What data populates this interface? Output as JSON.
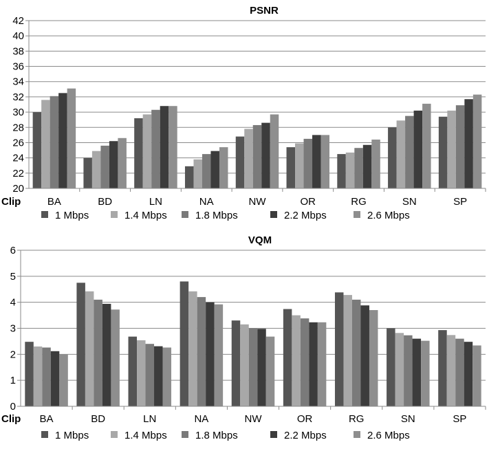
{
  "chart_data": [
    {
      "type": "bar",
      "title": "PSNR",
      "x_prefix_label": "Clip",
      "categories": [
        "BA",
        "BD",
        "LN",
        "NA",
        "NW",
        "OR",
        "RG",
        "SN",
        "SP"
      ],
      "ylim": [
        20,
        42
      ],
      "ytick_step": 2,
      "grid": true,
      "legend_position": "bottom",
      "series": [
        {
          "name": "1 Mbps",
          "values": [
            30.0,
            24.0,
            29.2,
            22.9,
            26.8,
            25.4,
            24.5,
            28.0,
            29.4
          ]
        },
        {
          "name": "1.4 Mbps",
          "values": [
            31.6,
            24.9,
            29.7,
            23.8,
            27.8,
            25.9,
            24.7,
            28.9,
            30.2
          ]
        },
        {
          "name": "1.8 Mbps",
          "values": [
            32.1,
            25.6,
            30.3,
            24.5,
            28.3,
            26.5,
            25.3,
            29.5,
            30.9
          ]
        },
        {
          "name": "2.2 Mbps",
          "values": [
            32.5,
            26.2,
            30.8,
            24.9,
            28.6,
            27.0,
            25.7,
            30.2,
            31.7
          ]
        },
        {
          "name": "2.6 Mbps",
          "values": [
            33.1,
            26.6,
            30.8,
            25.4,
            29.7,
            27.0,
            26.4,
            31.1,
            32.3
          ]
        }
      ]
    },
    {
      "type": "bar",
      "title": "VQM",
      "x_prefix_label": "Clip",
      "categories": [
        "BA",
        "BD",
        "LN",
        "NA",
        "NW",
        "OR",
        "RG",
        "SN",
        "SP"
      ],
      "ylim": [
        0,
        6
      ],
      "ytick_step": 1,
      "grid": true,
      "legend_position": "bottom",
      "series": [
        {
          "name": "1 Mbps",
          "values": [
            2.48,
            4.75,
            2.68,
            4.8,
            3.3,
            3.74,
            4.38,
            3.0,
            2.93
          ]
        },
        {
          "name": "1.4 Mbps",
          "values": [
            2.3,
            4.42,
            2.54,
            4.42,
            3.15,
            3.5,
            4.28,
            2.82,
            2.74
          ]
        },
        {
          "name": "1.8 Mbps",
          "values": [
            2.26,
            4.1,
            2.4,
            4.2,
            3.0,
            3.38,
            4.1,
            2.73,
            2.6
          ]
        },
        {
          "name": "2.2 Mbps",
          "values": [
            2.12,
            3.94,
            2.31,
            4.0,
            2.98,
            3.23,
            3.88,
            2.6,
            2.48
          ]
        },
        {
          "name": "2.6 Mbps",
          "values": [
            2.0,
            3.72,
            2.26,
            3.92,
            2.68,
            3.23,
            3.7,
            2.52,
            2.34
          ]
        }
      ]
    }
  ],
  "series_colors": [
    "#555555",
    "#a8a8a8",
    "#7a7a7a",
    "#3c3c3c",
    "#8e8e8e"
  ]
}
